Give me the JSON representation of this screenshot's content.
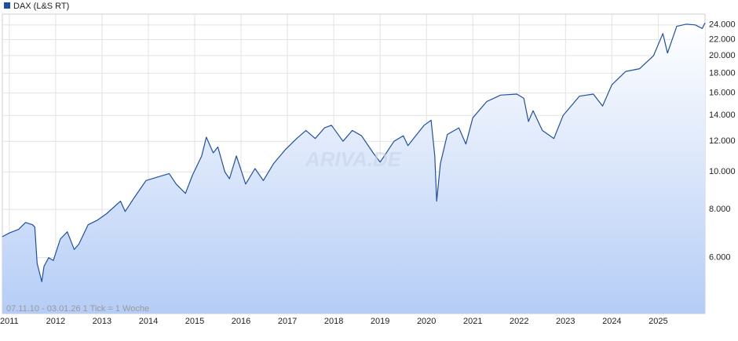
{
  "chart_data": {
    "type": "line",
    "legend": "DAX (L&S RT)",
    "annotation": "07.11.10 - 03.01.26   1 Tick = 1 Woche",
    "watermark": "ARIVA.DE",
    "log_scale": true,
    "grid": true,
    "xlim": [
      2010.85,
      2026.01
    ],
    "xticks": [
      2011,
      2012,
      2013,
      2014,
      2015,
      2016,
      2017,
      2018,
      2019,
      2020,
      2021,
      2022,
      2023,
      2024,
      2025
    ],
    "ylim": [
      4300,
      25600
    ],
    "yticks": [
      {
        "value": 6000,
        "label": "6.000"
      },
      {
        "value": 8000,
        "label": "8.000"
      },
      {
        "value": 10000,
        "label": "10.000"
      },
      {
        "value": 12000,
        "label": "12.000"
      },
      {
        "value": 14000,
        "label": "14.000"
      },
      {
        "value": 16000,
        "label": "16.000"
      },
      {
        "value": 18000,
        "label": "18.000"
      },
      {
        "value": 20000,
        "label": "20.000"
      },
      {
        "value": 22000,
        "label": "22.000"
      },
      {
        "value": 24000,
        "label": "24.000"
      }
    ],
    "x": [
      2010.85,
      2011.0,
      2011.2,
      2011.35,
      2011.5,
      2011.55,
      2011.6,
      2011.7,
      2011.75,
      2011.85,
      2011.95,
      2012.1,
      2012.25,
      2012.4,
      2012.5,
      2012.7,
      2012.9,
      2013.1,
      2013.4,
      2013.5,
      2013.7,
      2013.95,
      2014.2,
      2014.45,
      2014.6,
      2014.8,
      2014.95,
      2015.15,
      2015.25,
      2015.4,
      2015.5,
      2015.65,
      2015.75,
      2015.9,
      2016.1,
      2016.3,
      2016.48,
      2016.7,
      2016.95,
      2017.2,
      2017.4,
      2017.6,
      2017.8,
      2017.95,
      2018.2,
      2018.4,
      2018.6,
      2018.85,
      2019.0,
      2019.3,
      2019.5,
      2019.6,
      2019.95,
      2020.1,
      2020.18,
      2020.22,
      2020.3,
      2020.45,
      2020.7,
      2020.85,
      2021.0,
      2021.3,
      2021.6,
      2021.95,
      2022.1,
      2022.2,
      2022.3,
      2022.5,
      2022.75,
      2022.95,
      2023.3,
      2023.6,
      2023.8,
      2024.0,
      2024.3,
      2024.6,
      2024.9,
      2025.1,
      2025.2,
      2025.4,
      2025.6,
      2025.8,
      2025.95,
      2026.01
    ],
    "series": [
      {
        "name": "DAX (L&S RT)",
        "color": "#1f4fa8",
        "values": [
          6800,
          6950,
          7100,
          7400,
          7300,
          7200,
          5800,
          5200,
          5700,
          6000,
          5900,
          6700,
          7000,
          6300,
          6500,
          7300,
          7500,
          7800,
          8400,
          7900,
          8600,
          9500,
          9700,
          9900,
          9300,
          8800,
          9800,
          11000,
          12300,
          11200,
          11600,
          10000,
          9600,
          11000,
          9300,
          10200,
          9500,
          10500,
          11400,
          12200,
          12800,
          12200,
          13000,
          13200,
          12000,
          12800,
          12400,
          11200,
          10600,
          12000,
          12400,
          11700,
          13200,
          13600,
          11000,
          8400,
          10500,
          12500,
          13000,
          11800,
          13800,
          15200,
          15800,
          15900,
          15500,
          13500,
          14400,
          12800,
          12200,
          14000,
          15700,
          15900,
          14800,
          16800,
          18200,
          18500,
          20000,
          22800,
          20300,
          23800,
          24100,
          24000,
          23500,
          24300
        ]
      }
    ]
  }
}
